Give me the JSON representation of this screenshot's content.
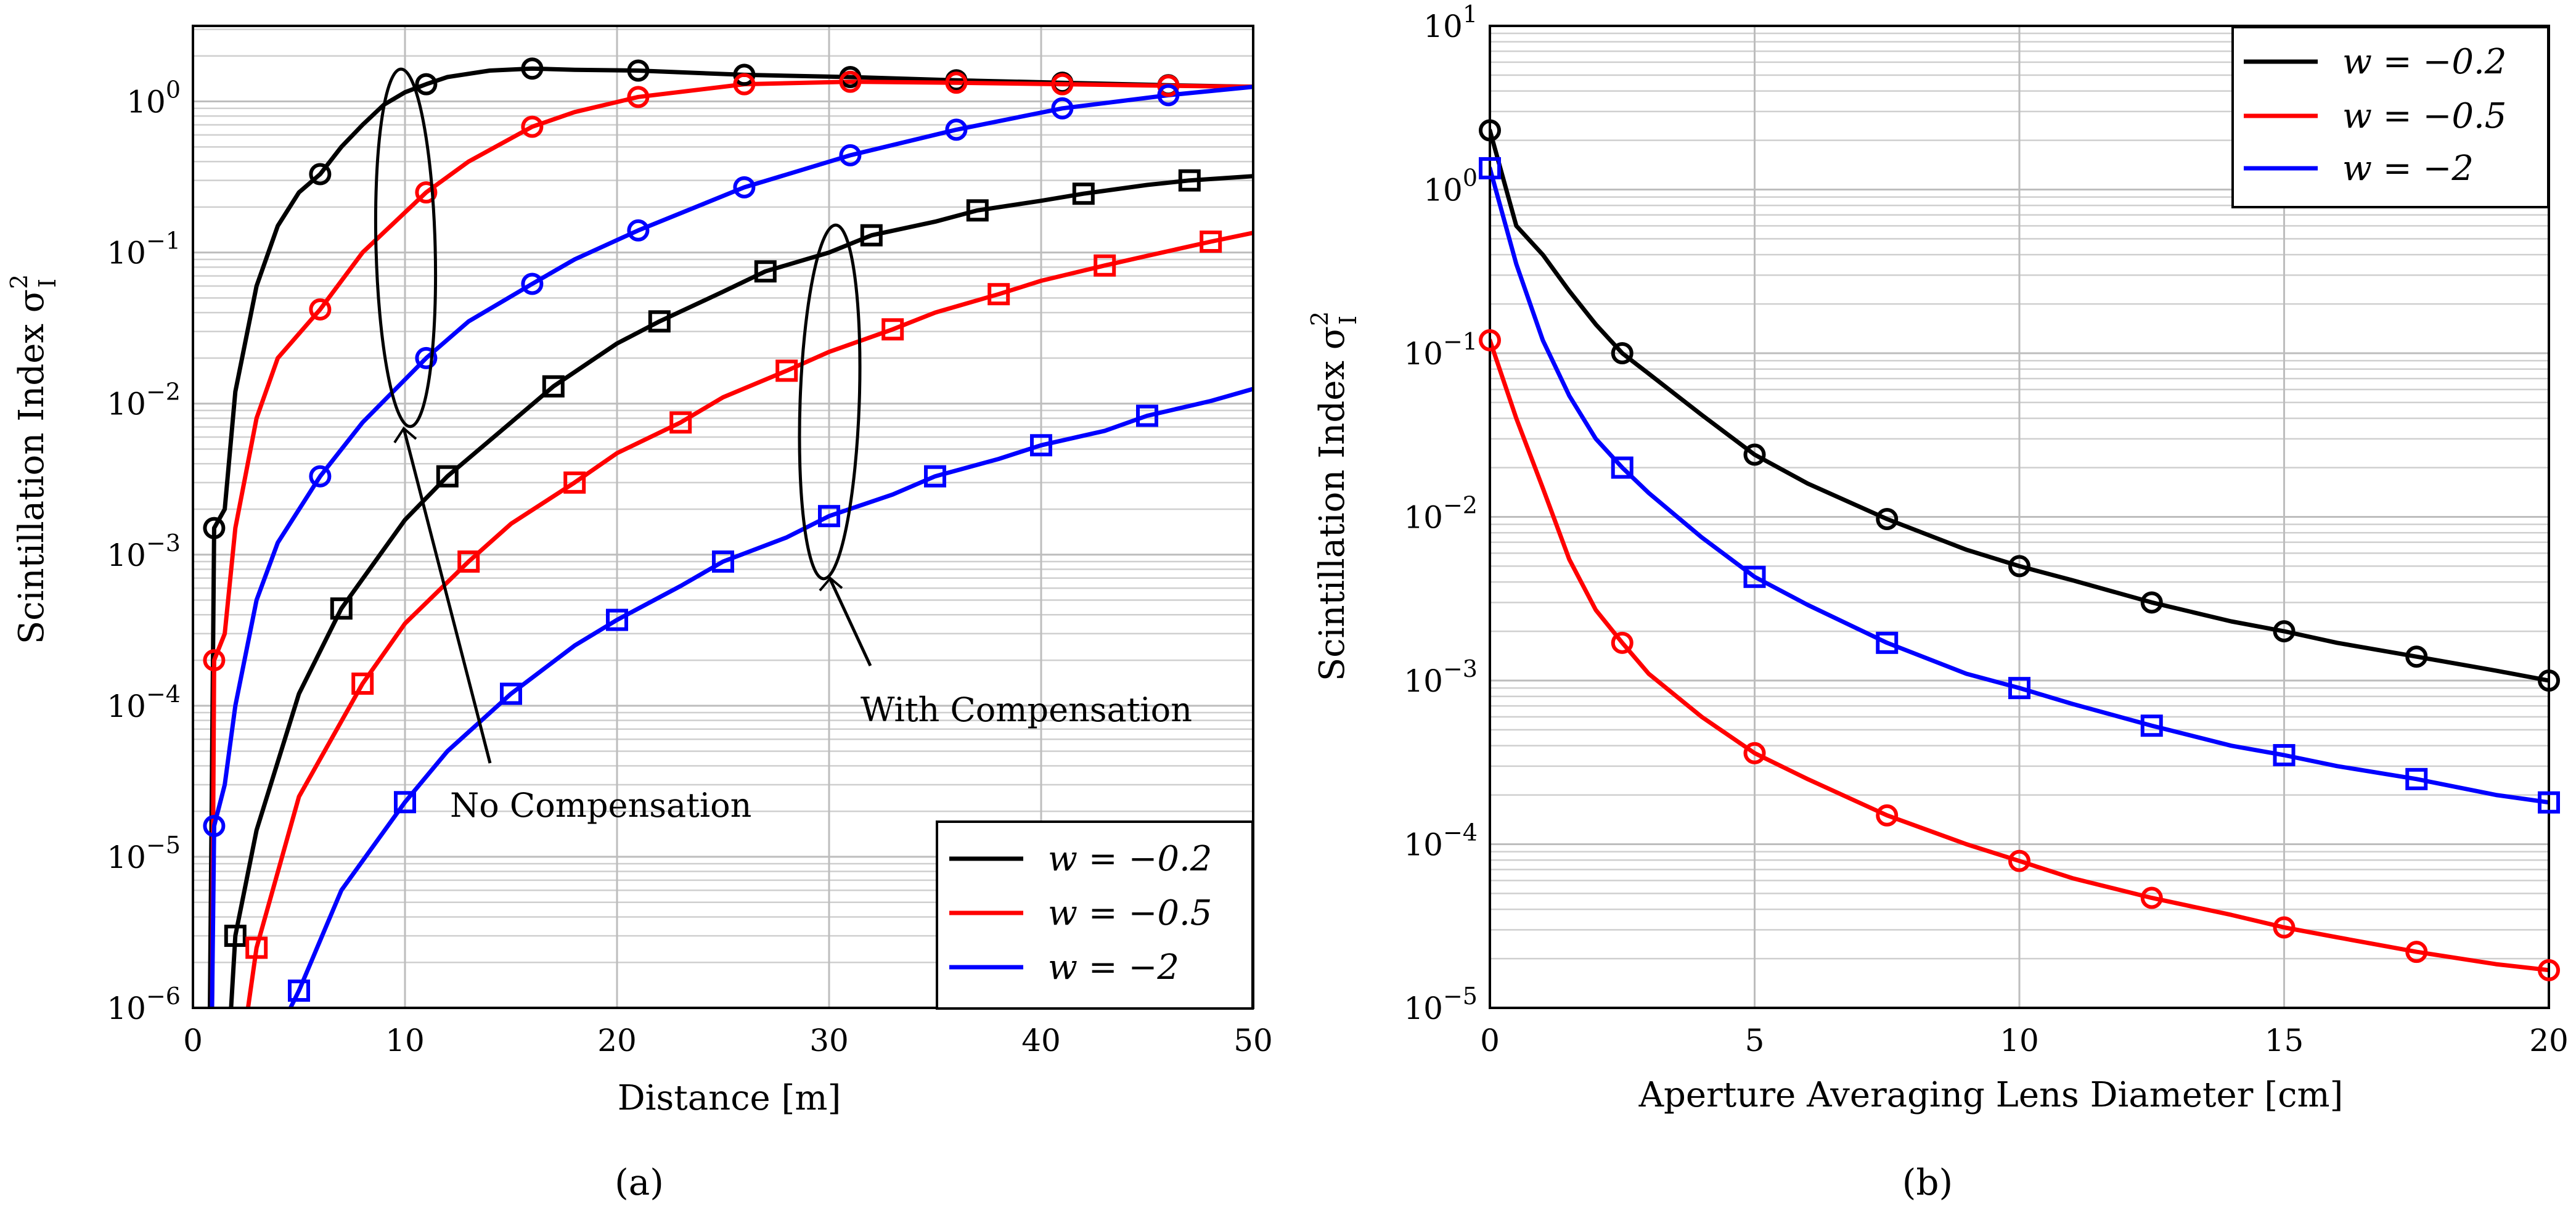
{
  "colors": {
    "black": "#000000",
    "red": "#ff0000",
    "blue": "#0000ff"
  },
  "chart_data": [
    {
      "type": "line",
      "panel": "a",
      "caption": "(a)",
      "xlabel": "Distance [m]",
      "ylabel": "Scintillation Index σ²_I",
      "ylabel_main": "Scintillation Index σ",
      "ylabel_sup": "2",
      "ylabel_sub": "I",
      "xlim": [
        0,
        50
      ],
      "ylim_log10": [
        -6,
        0.5
      ],
      "yscale": "log",
      "grid": true,
      "xticks": [
        0,
        10,
        20,
        30,
        40,
        50
      ],
      "xtick_labels": [
        "0",
        "10",
        "20",
        "30",
        "40",
        "50"
      ],
      "ytick_exps": [
        -6,
        -5,
        -4,
        -3,
        -2,
        -1,
        0
      ],
      "ytick_labels": [
        {
          "base": "10",
          "exp": "−6"
        },
        {
          "base": "10",
          "exp": "−5"
        },
        {
          "base": "10",
          "exp": "−4"
        },
        {
          "base": "10",
          "exp": "−3"
        },
        {
          "base": "10",
          "exp": "−2"
        },
        {
          "base": "10",
          "exp": "−1"
        },
        {
          "base": "10",
          "exp": "0"
        }
      ],
      "annotations": [
        "No Compensation",
        "With Compensation"
      ],
      "legend": {
        "placement": "bottom-right",
        "entries": [
          {
            "label": "w = −0.2",
            "color": "#000000"
          },
          {
            "label": "w = −0.5",
            "color": "#ff0000"
          },
          {
            "label": "w = −2",
            "color": "#0000ff"
          }
        ]
      },
      "series": [
        {
          "name": "No Compensation, w = −0.2",
          "color": "#000000",
          "marker": "circle",
          "x": [
            0.8,
            1,
            1.5,
            2,
            3,
            4,
            5,
            6,
            7,
            8,
            9,
            10,
            11,
            12,
            14,
            16,
            18,
            21,
            26,
            31,
            36,
            41,
            46,
            50
          ],
          "y": [
            1e-06,
            0.0015,
            0.002,
            0.012,
            0.06,
            0.15,
            0.25,
            0.33,
            0.5,
            0.7,
            0.95,
            1.15,
            1.3,
            1.45,
            1.6,
            1.65,
            1.62,
            1.6,
            1.5,
            1.45,
            1.38,
            1.33,
            1.28,
            1.25
          ],
          "marker_x": [
            1,
            6,
            11,
            16,
            21,
            26,
            31,
            36,
            41,
            46
          ],
          "marker_y": [
            0.0015,
            0.33,
            1.3,
            1.65,
            1.6,
            1.5,
            1.45,
            1.38,
            1.33,
            1.28
          ]
        },
        {
          "name": "No Compensation, w = −0.5",
          "color": "#ff0000",
          "marker": "circle",
          "x": [
            0.9,
            1,
            1.5,
            2,
            3,
            4,
            6,
            8,
            11,
            13,
            16,
            18,
            21,
            26,
            31,
            36,
            41,
            46,
            50
          ],
          "y": [
            1e-06,
            0.0002,
            0.0003,
            0.0015,
            0.008,
            0.02,
            0.042,
            0.1,
            0.25,
            0.4,
            0.68,
            0.85,
            1.07,
            1.3,
            1.35,
            1.33,
            1.3,
            1.27,
            1.25
          ],
          "marker_x": [
            1,
            6,
            11,
            16,
            21,
            26,
            31,
            36,
            41,
            46
          ],
          "marker_y": [
            0.0002,
            0.042,
            0.25,
            0.68,
            1.07,
            1.3,
            1.35,
            1.33,
            1.3,
            1.27
          ]
        },
        {
          "name": "No Compensation, w = −2",
          "color": "#0000ff",
          "marker": "circle",
          "x": [
            0.9,
            1,
            1.5,
            2,
            3,
            4,
            6,
            8,
            11,
            13,
            16,
            18,
            21,
            26,
            31,
            36,
            41,
            46,
            50
          ],
          "y": [
            1e-06,
            1.6e-05,
            3e-05,
            0.0001,
            0.0005,
            0.0012,
            0.0033,
            0.0075,
            0.02,
            0.035,
            0.062,
            0.09,
            0.14,
            0.27,
            0.44,
            0.65,
            0.9,
            1.1,
            1.25
          ],
          "marker_x": [
            1,
            6,
            11,
            16,
            21,
            26,
            31,
            36,
            41,
            46
          ],
          "marker_y": [
            1.6e-05,
            0.0033,
            0.02,
            0.062,
            0.14,
            0.27,
            0.44,
            0.65,
            0.9,
            1.1
          ]
        },
        {
          "name": "With Compensation, w = −0.2",
          "color": "#000000",
          "marker": "square",
          "x": [
            1.8,
            2,
            3,
            5,
            7,
            10,
            12,
            15,
            17,
            20,
            22,
            25,
            27,
            30,
            32,
            35,
            37,
            40,
            42,
            45,
            47,
            50
          ],
          "y": [
            1e-06,
            3e-06,
            1.5e-05,
            0.00012,
            0.00044,
            0.0017,
            0.0033,
            0.0075,
            0.013,
            0.025,
            0.035,
            0.055,
            0.075,
            0.1,
            0.13,
            0.16,
            0.19,
            0.22,
            0.245,
            0.28,
            0.3,
            0.32
          ],
          "marker_x": [
            2,
            7,
            12,
            17,
            22,
            27,
            32,
            37,
            42,
            47
          ],
          "marker_y": [
            3e-06,
            0.00044,
            0.0033,
            0.013,
            0.035,
            0.075,
            0.13,
            0.19,
            0.245,
            0.3
          ]
        },
        {
          "name": "With Compensation, w = −0.5",
          "color": "#ff0000",
          "marker": "square",
          "x": [
            2.6,
            3,
            5,
            8,
            10,
            13,
            15,
            18,
            20,
            23,
            25,
            28,
            30,
            33,
            35,
            38,
            40,
            43,
            45,
            48,
            50
          ],
          "y": [
            1e-06,
            2.5e-06,
            2.5e-05,
            0.00014,
            0.00035,
            0.0009,
            0.0016,
            0.003,
            0.0047,
            0.0075,
            0.011,
            0.0165,
            0.022,
            0.031,
            0.04,
            0.053,
            0.065,
            0.082,
            0.095,
            0.118,
            0.135
          ],
          "marker_x": [
            3,
            8,
            13,
            18,
            23,
            28,
            33,
            38,
            43,
            48
          ],
          "marker_y": [
            2.5e-06,
            0.00014,
            0.0009,
            0.003,
            0.0075,
            0.0165,
            0.031,
            0.053,
            0.082,
            0.118
          ]
        },
        {
          "name": "With Compensation, w = −2",
          "color": "#0000ff",
          "marker": "square",
          "x": [
            4.6,
            5,
            7,
            10,
            12,
            15,
            18,
            20,
            23,
            25,
            28,
            30,
            33,
            35,
            38,
            40,
            43,
            45,
            48,
            50
          ],
          "y": [
            1e-06,
            1.3e-06,
            6e-06,
            2.3e-05,
            5e-05,
            0.00012,
            0.00025,
            0.00037,
            0.00062,
            0.0009,
            0.0013,
            0.0018,
            0.0025,
            0.0033,
            0.0043,
            0.0053,
            0.0066,
            0.0083,
            0.0104,
            0.0125
          ],
          "marker_x": [
            5,
            10,
            15,
            20,
            25,
            30,
            35,
            40,
            45
          ],
          "marker_y": [
            1.3e-06,
            2.3e-05,
            0.00012,
            0.00037,
            0.0009,
            0.0018,
            0.0033,
            0.0053,
            0.0083
          ]
        }
      ]
    },
    {
      "type": "line",
      "panel": "b",
      "caption": "(b)",
      "xlabel": "Aperture Averaging Lens Diameter [cm]",
      "ylabel": "Scintillation Index σ²_I",
      "ylabel_main": "Scintillation Index σ",
      "ylabel_sup": "2",
      "ylabel_sub": "I",
      "xlim": [
        0,
        20
      ],
      "ylim_log10": [
        -5,
        1
      ],
      "yscale": "log",
      "grid": true,
      "xticks": [
        0,
        5,
        10,
        15,
        20
      ],
      "xtick_labels": [
        "0",
        "5",
        "10",
        "15",
        "20"
      ],
      "ytick_exps": [
        -5,
        -4,
        -3,
        -2,
        -1,
        0,
        1
      ],
      "ytick_labels": [
        {
          "base": "10",
          "exp": "−5"
        },
        {
          "base": "10",
          "exp": "−4"
        },
        {
          "base": "10",
          "exp": "−3"
        },
        {
          "base": "10",
          "exp": "−2"
        },
        {
          "base": "10",
          "exp": "−1"
        },
        {
          "base": "10",
          "exp": "0"
        },
        {
          "base": "10",
          "exp": "1"
        }
      ],
      "legend": {
        "placement": "top-right",
        "entries": [
          {
            "label": "w = −0.2",
            "color": "#000000"
          },
          {
            "label": "w = −0.5",
            "color": "#ff0000"
          },
          {
            "label": "w = −2",
            "color": "#0000ff"
          }
        ]
      },
      "series": [
        {
          "name": "w = −0.2",
          "color": "#000000",
          "marker": "circle",
          "x": [
            0,
            0.5,
            1,
            1.5,
            2,
            2.5,
            3,
            4,
            5,
            6,
            7.5,
            9,
            10,
            11,
            12.5,
            14,
            15,
            16,
            17.5,
            19,
            20
          ],
          "y": [
            2.3,
            0.6,
            0.4,
            0.24,
            0.15,
            0.1,
            0.075,
            0.042,
            0.024,
            0.016,
            0.0097,
            0.0063,
            0.005,
            0.0041,
            0.003,
            0.0023,
            0.002,
            0.0017,
            0.0014,
            0.00115,
            0.001
          ],
          "marker_x": [
            0,
            2.5,
            5,
            7.5,
            10,
            12.5,
            15,
            17.5,
            20
          ],
          "marker_y": [
            2.3,
            0.1,
            0.024,
            0.0097,
            0.005,
            0.003,
            0.002,
            0.0014,
            0.001
          ]
        },
        {
          "name": "w = −0.5",
          "color": "#ff0000",
          "marker": "circle",
          "x": [
            0,
            0.5,
            1,
            1.5,
            2,
            2.5,
            3,
            4,
            5,
            6,
            7.5,
            9,
            10,
            11,
            12.5,
            14,
            15,
            16,
            17.5,
            19,
            20
          ],
          "y": [
            0.12,
            0.04,
            0.015,
            0.0055,
            0.0027,
            0.0017,
            0.0011,
            0.0006,
            0.00036,
            0.00025,
            0.00015,
            0.0001,
            7.9e-05,
            6.2e-05,
            4.7e-05,
            3.7e-05,
            3.1e-05,
            2.7e-05,
            2.2e-05,
            1.85e-05,
            1.7e-05
          ],
          "marker_x": [
            0,
            2.5,
            5,
            7.5,
            10,
            12.5,
            15,
            17.5,
            20
          ],
          "marker_y": [
            0.12,
            0.0017,
            0.00036,
            0.00015,
            7.9e-05,
            4.7e-05,
            3.1e-05,
            2.2e-05,
            1.7e-05
          ]
        },
        {
          "name": "w = −2",
          "color": "#0000ff",
          "marker": "square",
          "x": [
            0,
            0.5,
            1,
            1.5,
            2,
            2.5,
            3,
            4,
            5,
            6,
            7.5,
            9,
            10,
            11,
            12.5,
            14,
            15,
            16,
            17.5,
            19,
            20
          ],
          "y": [
            1.35,
            0.35,
            0.12,
            0.055,
            0.03,
            0.02,
            0.014,
            0.0075,
            0.0043,
            0.0029,
            0.0017,
            0.0011,
            0.0009,
            0.00072,
            0.00053,
            0.0004,
            0.00035,
            0.0003,
            0.00025,
            0.0002,
            0.00018
          ],
          "marker_x": [
            0,
            2.5,
            5,
            7.5,
            10,
            12.5,
            15,
            17.5,
            20
          ],
          "marker_y": [
            1.35,
            0.02,
            0.0043,
            0.0017,
            0.0009,
            0.00053,
            0.00035,
            0.00025,
            0.00018
          ]
        }
      ]
    }
  ]
}
